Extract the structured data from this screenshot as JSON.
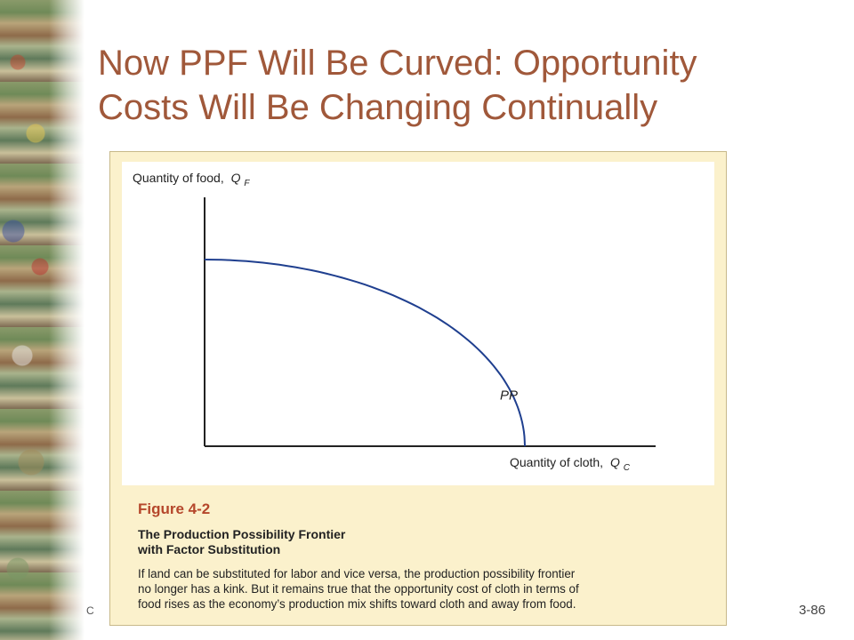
{
  "slide": {
    "title_line1": "Now PPF Will Be Curved: Opportunity",
    "title_line2": "Costs Will Be Changing Continually",
    "footer_left": "C",
    "slide_number": "3-86"
  },
  "colors": {
    "title": "#a0583a",
    "curve": "#1f3f8f",
    "figure_background": "#fbf1cc",
    "figure_number": "#b5472b"
  },
  "figure": {
    "number": "Figure 4-2",
    "title_line1": "The Production Possibility Frontier",
    "title_line2": "with Factor Substitution",
    "body_lines": [
      "If land can be substituted for labor and vice versa, the production possibility frontier",
      "no longer has a kink. But it remains true that the opportunity cost of cloth in terms of",
      "food rises as the economy’s production mix shifts toward cloth and away from food."
    ]
  },
  "chart_data": {
    "type": "line",
    "title": "",
    "xlabel": "Quantity of cloth,",
    "xlabel_symbol": "Q",
    "xlabel_subscript": "C",
    "ylabel": "Quantity of food,",
    "ylabel_symbol": "Q",
    "ylabel_subscript": "F",
    "curve_label": "PP",
    "ticks": "none",
    "grid": false,
    "xlim": [
      0,
      1
    ],
    "ylim": [
      0,
      1
    ],
    "series": [
      {
        "name": "PP",
        "shape": "concave production possibility frontier (quarter ellipse, no kink)",
        "x_intercept": 0.71,
        "y_intercept": 0.75
      }
    ]
  }
}
